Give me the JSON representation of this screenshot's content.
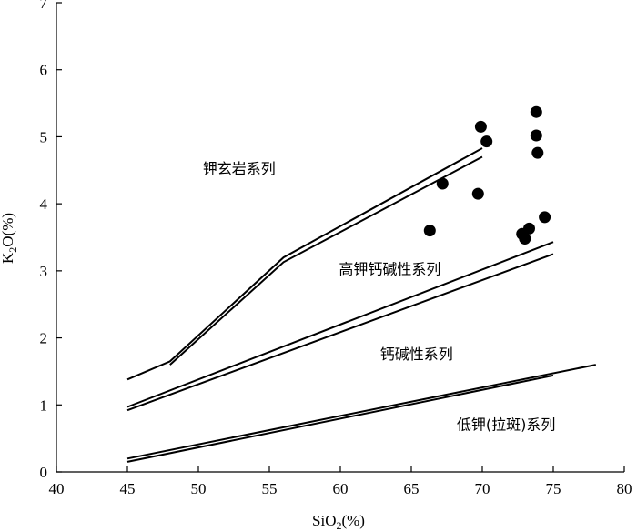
{
  "chart_data": {
    "type": "scatter",
    "xlabel": {
      "main": "SiO",
      "sub": "2",
      "tail": "(%)"
    },
    "ylabel": {
      "main": "K",
      "sub": "2",
      "tail": "O(%)"
    },
    "xlim": [
      40,
      80
    ],
    "ylim": [
      0,
      7
    ],
    "xticks": [
      "40",
      "45",
      "50",
      "55",
      "60",
      "65",
      "70",
      "75",
      "80"
    ],
    "yticks": [
      "0",
      "1",
      "2",
      "3",
      "4",
      "5",
      "6",
      "7"
    ],
    "grid": false,
    "points": [
      {
        "x": 66.3,
        "y": 3.6
      },
      {
        "x": 67.2,
        "y": 4.3
      },
      {
        "x": 69.7,
        "y": 4.15
      },
      {
        "x": 69.9,
        "y": 5.15
      },
      {
        "x": 70.3,
        "y": 4.93
      },
      {
        "x": 72.8,
        "y": 3.55
      },
      {
        "x": 73.0,
        "y": 3.48
      },
      {
        "x": 73.3,
        "y": 3.63
      },
      {
        "x": 73.8,
        "y": 5.37
      },
      {
        "x": 73.8,
        "y": 5.02
      },
      {
        "x": 73.9,
        "y": 4.76
      },
      {
        "x": 74.4,
        "y": 3.8
      }
    ],
    "boundaries": [
      {
        "lines": [
          [
            [
              45,
              1.38
            ],
            [
              48,
              1.65
            ],
            [
              56,
              3.2
            ],
            [
              70,
              4.83
            ]
          ],
          [
            [
              48,
              1.6
            ],
            [
              56,
              3.13
            ],
            [
              70,
              4.7
            ]
          ]
        ]
      },
      {
        "lines": [
          [
            [
              45,
              0.97
            ],
            [
              75,
              3.43
            ]
          ],
          [
            [
              45,
              0.92
            ],
            [
              75,
              3.25
            ]
          ]
        ]
      },
      {
        "lines": [
          [
            [
              45,
              0.2
            ],
            [
              78,
              1.6
            ]
          ],
          [
            [
              45,
              0.15
            ],
            [
              75,
              1.44
            ]
          ]
        ]
      }
    ],
    "annotations": [
      {
        "text": "钾玄岩系列",
        "x": 50.3,
        "y": 4.45
      },
      {
        "text": "高钾钙碱性系列",
        "x": 59.9,
        "y": 2.95
      },
      {
        "text": "钙碱性系列",
        "x": 62.8,
        "y": 1.68
      },
      {
        "text": "低钾(拉斑)系列",
        "x": 68.2,
        "y": 0.63
      }
    ]
  }
}
